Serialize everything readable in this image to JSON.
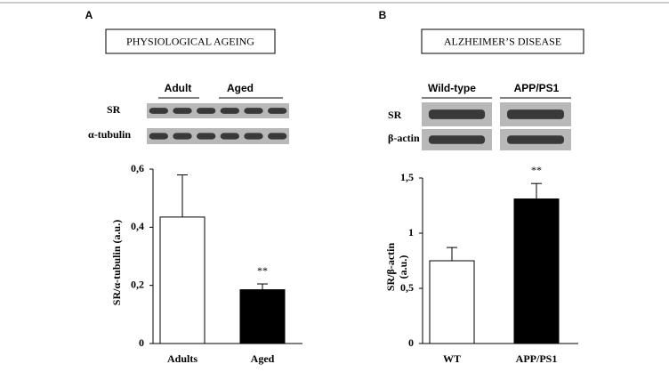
{
  "chart_data": [
    {
      "type": "bar",
      "panel": "A",
      "header": "PHYSIOLOGICAL AGEING",
      "blot_groups": [
        "Adult",
        "Aged"
      ],
      "blot_rows": [
        "SR",
        "α-tubulin"
      ],
      "ylabel": "SR/α-tubulin (a.u.)",
      "categories": [
        "Adults",
        "Aged"
      ],
      "values": [
        0.435,
        0.185
      ],
      "errors": [
        0.145,
        0.02
      ],
      "colors": [
        "#ffffff",
        "#000000"
      ],
      "annotation": "**",
      "ylim": [
        0,
        0.6
      ],
      "yticks": [
        0,
        {
          "value": 0.2,
          "label": "0,2"
        },
        {
          "value": 0.4,
          "label": "0,4"
        },
        {
          "value": 0.6,
          "label": "0,6"
        }
      ]
    },
    {
      "type": "bar",
      "panel": "B",
      "header": "ALZHEIMER’S DISEASE",
      "blot_groups": [
        "Wild-type",
        "APP/PS1"
      ],
      "blot_rows": [
        "SR",
        "β-actin"
      ],
      "ylabel": [
        "SR/β-actin",
        "(a.u.)"
      ],
      "categories": [
        "WT",
        "APP/PS1"
      ],
      "values": [
        0.75,
        1.31
      ],
      "errors": [
        0.12,
        0.14
      ],
      "colors": [
        "#ffffff",
        "#000000"
      ],
      "annotation": "**",
      "ylim": [
        0,
        1.5
      ],
      "yticks": [
        0,
        {
          "value": 0.5,
          "label": "0,5"
        },
        1,
        {
          "value": 1.5,
          "label": "1,5"
        }
      ]
    }
  ]
}
